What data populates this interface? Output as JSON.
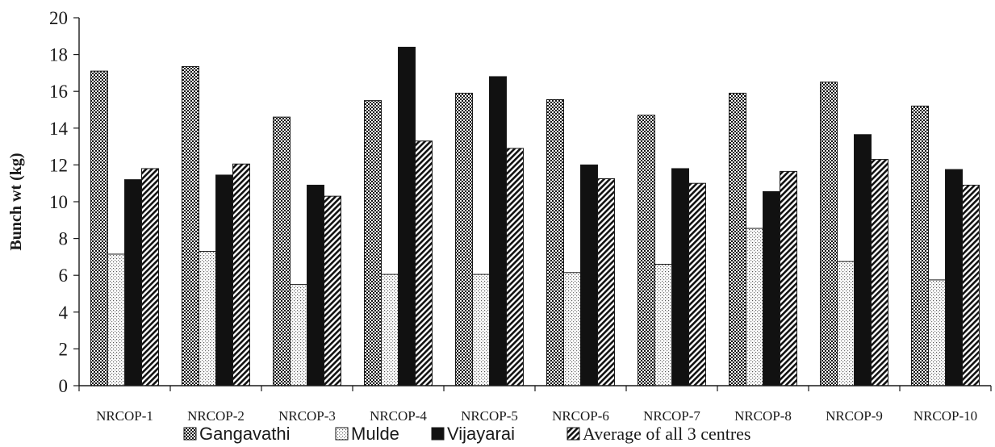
{
  "chart_data": {
    "type": "bar",
    "title": "",
    "xlabel": "",
    "ylabel": "Bunch wt  (kg)",
    "ylim": [
      0,
      20
    ],
    "yticks": [
      "0",
      "2",
      "4",
      "6",
      "8",
      "10",
      "12",
      "14",
      "16",
      "18",
      "20"
    ],
    "grid": false,
    "legend_position": "bottom",
    "categories": [
      "NRCOP-1",
      "NRCOP-2",
      "NRCOP-3",
      "NRCOP-4",
      "NRCOP-5",
      "NRCOP-6",
      "NRCOP-7",
      "NRCOP-8",
      "NRCOP-9",
      "NRCOP-10"
    ],
    "series": [
      {
        "name": "Gangavathi",
        "pattern": "dense-dots",
        "values": [
          17.1,
          17.35,
          14.6,
          15.5,
          15.9,
          15.55,
          14.7,
          15.9,
          16.5,
          15.2
        ]
      },
      {
        "name": "Mulde",
        "pattern": "light-dots",
        "values": [
          7.15,
          7.3,
          5.5,
          6.05,
          6.05,
          6.15,
          6.6,
          8.55,
          6.75,
          5.75
        ]
      },
      {
        "name": "Vijayarai",
        "pattern": "solid-black",
        "values": [
          11.2,
          11.45,
          10.9,
          18.4,
          16.8,
          12.0,
          11.8,
          10.55,
          13.65,
          11.75
        ]
      },
      {
        "name": "Average of all 3 centres",
        "pattern": "diagonal-hatch",
        "values": [
          11.8,
          12.05,
          10.3,
          13.3,
          12.9,
          11.25,
          11.0,
          11.65,
          12.3,
          10.9
        ]
      }
    ],
    "colors": {
      "ink": "#1a1a1a",
      "background": "#ffffff"
    }
  }
}
